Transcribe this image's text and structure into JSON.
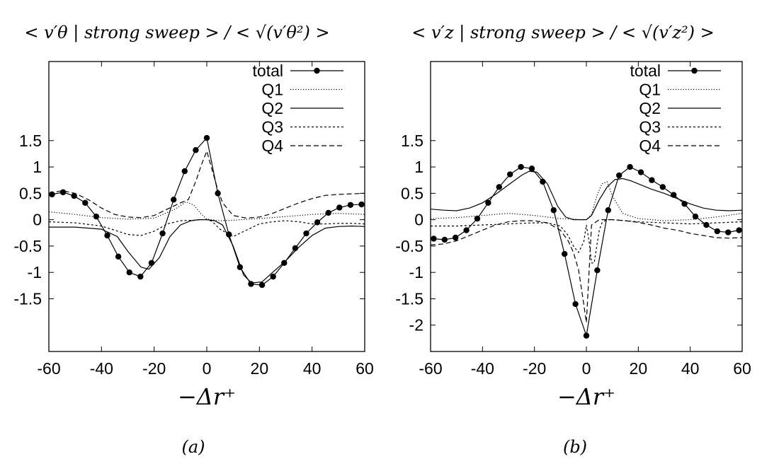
{
  "chart_data": [
    {
      "type": "line",
      "title": "< v′θ | strong sweep > / < √(v′θ²) >",
      "xlabel": "−Δr⁺",
      "ylabel": "",
      "xlim": [
        -60,
        60
      ],
      "ylim": [
        -2.5,
        3.0
      ],
      "xticks": [
        "-60",
        "-40",
        "-20",
        "0",
        "20",
        "40",
        "60"
      ],
      "yticks": [
        "1.5",
        "1",
        "0.5",
        "0",
        "-0.5",
        "-1",
        "-1.5"
      ],
      "legend": "top-right",
      "caption": "(a)",
      "series": [
        {
          "name": "total",
          "style": "solid-dots",
          "x": [
            -58.8,
            -54.6,
            -50.4,
            -46.2,
            -42.0,
            -37.8,
            -33.6,
            -29.4,
            -25.2,
            -21.0,
            -16.8,
            -12.6,
            -8.4,
            -4.2,
            0.0,
            4.2,
            8.4,
            12.6,
            16.8,
            21.0,
            25.2,
            29.4,
            33.6,
            37.8,
            42.0,
            46.2,
            50.4,
            54.6,
            58.8
          ],
          "y": [
            0.48,
            0.52,
            0.45,
            0.32,
            0.06,
            -0.3,
            -0.7,
            -1.0,
            -1.08,
            -0.82,
            -0.26,
            0.38,
            0.92,
            1.32,
            1.55,
            0.5,
            -0.28,
            -0.9,
            -1.22,
            -1.24,
            -1.08,
            -0.82,
            -0.54,
            -0.26,
            -0.05,
            0.13,
            0.23,
            0.28,
            0.29
          ]
        },
        {
          "name": "Q1",
          "style": "dotted",
          "x": [
            -60,
            -50,
            -40,
            -30,
            -20,
            -12,
            -8,
            -5,
            -2,
            0,
            5,
            10,
            20,
            30,
            40,
            50,
            60
          ],
          "y": [
            0.15,
            0.1,
            0.04,
            0.01,
            0.03,
            0.2,
            0.34,
            0.28,
            0.1,
            0.01,
            -0.02,
            -0.01,
            0.02,
            0.06,
            0.1,
            0.12,
            0.1
          ]
        },
        {
          "name": "Q2",
          "style": "solid",
          "x": [
            -60,
            -50,
            -40,
            -34,
            -30,
            -25,
            -22,
            -18,
            -14,
            -10,
            -6,
            -3,
            0,
            3,
            6,
            10,
            14,
            17,
            21,
            25,
            30,
            35,
            40,
            45,
            50,
            55,
            60
          ],
          "y": [
            -0.14,
            -0.14,
            -0.18,
            -0.32,
            -0.6,
            -0.9,
            -0.94,
            -0.72,
            -0.32,
            -0.1,
            -0.02,
            0.0,
            0.0,
            -0.02,
            -0.1,
            -0.5,
            -1.05,
            -1.2,
            -1.18,
            -1.0,
            -0.78,
            -0.52,
            -0.3,
            -0.16,
            -0.13,
            -0.12,
            -0.13
          ]
        },
        {
          "name": "Q3",
          "style": "dashed-fine",
          "x": [
            -60,
            -50,
            -40,
            -35,
            -30,
            -25,
            -20,
            -15,
            -10,
            -5,
            -2,
            0,
            2,
            5,
            10,
            15,
            20,
            25,
            30,
            35,
            40,
            45,
            50,
            55,
            60
          ],
          "y": [
            -0.04,
            -0.06,
            -0.12,
            -0.2,
            -0.28,
            -0.3,
            -0.22,
            -0.08,
            -0.02,
            -0.01,
            0.0,
            0.0,
            -0.03,
            -0.18,
            -0.32,
            -0.2,
            -0.08,
            -0.04,
            -0.02,
            -0.04,
            -0.08,
            -0.08,
            -0.07,
            -0.07,
            -0.08
          ]
        },
        {
          "name": "Q4",
          "style": "dashed",
          "x": [
            -60,
            -55,
            -50,
            -45,
            -40,
            -35,
            -30,
            -25,
            -20,
            -15,
            -10,
            -7,
            -4,
            -2,
            0,
            2,
            4,
            6,
            10,
            15,
            20,
            25,
            30,
            35,
            40,
            45,
            50,
            55,
            60
          ],
          "y": [
            0.5,
            0.55,
            0.5,
            0.38,
            0.22,
            0.1,
            0.05,
            0.04,
            0.08,
            0.2,
            0.32,
            0.38,
            0.75,
            1.05,
            1.3,
            0.95,
            0.6,
            0.32,
            0.08,
            0.03,
            0.05,
            0.12,
            0.22,
            0.32,
            0.4,
            0.46,
            0.48,
            0.49,
            0.5
          ]
        }
      ]
    },
    {
      "type": "line",
      "title": "< v′z | strong sweep > / < √(v′z²) >",
      "xlabel": "−Δr⁺",
      "ylabel": "",
      "xlim": [
        -60,
        60
      ],
      "ylim": [
        -2.5,
        3.0
      ],
      "xticks": [
        "-60",
        "-40",
        "-20",
        "0",
        "20",
        "40",
        "60"
      ],
      "yticks": [
        "1.5",
        "1",
        "0.5",
        "0",
        "-0.5",
        "-1",
        "-1.5",
        "-2"
      ],
      "legend": "top-right",
      "caption": "(b)",
      "series": [
        {
          "name": "total",
          "style": "solid-dots",
          "x": [
            -58.8,
            -54.6,
            -50.4,
            -46.2,
            -42.0,
            -37.8,
            -33.6,
            -29.4,
            -25.2,
            -21.0,
            -16.8,
            -12.6,
            -8.4,
            -4.2,
            0.0,
            4.2,
            8.4,
            12.6,
            16.8,
            21.0,
            25.2,
            29.4,
            33.6,
            37.8,
            42.0,
            46.2,
            50.4,
            54.6,
            58.8
          ],
          "y": [
            -0.36,
            -0.38,
            -0.34,
            -0.2,
            0.02,
            0.32,
            0.62,
            0.86,
            1.0,
            0.97,
            0.72,
            0.18,
            -0.65,
            -1.6,
            -2.2,
            -0.96,
            0.18,
            0.84,
            1.0,
            0.9,
            0.75,
            0.62,
            0.47,
            0.3,
            0.06,
            -0.1,
            -0.22,
            -0.24,
            -0.2
          ]
        },
        {
          "name": "Q1",
          "style": "dotted",
          "x": [
            -60,
            -50,
            -40,
            -30,
            -20,
            -10,
            -5,
            -2,
            0,
            2,
            4,
            6,
            8,
            10,
            14,
            20,
            30,
            40,
            50,
            60
          ],
          "y": [
            0.02,
            0.04,
            0.08,
            0.12,
            0.08,
            0.02,
            0.01,
            0.0,
            0.0,
            0.1,
            0.45,
            0.68,
            0.72,
            0.45,
            0.12,
            0.02,
            -0.02,
            0.0,
            0.05,
            0.12
          ]
        },
        {
          "name": "Q2",
          "style": "solid",
          "x": [
            -60,
            -55,
            -50,
            -45,
            -40,
            -35,
            -30,
            -25,
            -22,
            -19,
            -15,
            -11,
            -8,
            -5,
            -2,
            0,
            2,
            5,
            8,
            11,
            14,
            17,
            20,
            25,
            30,
            35,
            40,
            45,
            50,
            55,
            60
          ],
          "y": [
            0.2,
            0.18,
            0.17,
            0.22,
            0.32,
            0.48,
            0.66,
            0.84,
            0.92,
            0.9,
            0.68,
            0.25,
            0.05,
            0.0,
            0.0,
            0.0,
            0.08,
            0.38,
            0.62,
            0.76,
            0.78,
            0.74,
            0.68,
            0.58,
            0.5,
            0.4,
            0.3,
            0.22,
            0.18,
            0.17,
            0.18
          ]
        },
        {
          "name": "Q3",
          "style": "dashed-fine",
          "x": [
            -60,
            -50,
            -40,
            -30,
            -20,
            -15,
            -10,
            -7,
            -5,
            -3,
            -1,
            0,
            1,
            2,
            3,
            4,
            5,
            6,
            8,
            10,
            15,
            20,
            30,
            40,
            50,
            60
          ],
          "y": [
            -0.12,
            -0.12,
            -0.1,
            -0.08,
            -0.06,
            -0.06,
            -0.12,
            -0.3,
            -0.5,
            -0.62,
            -0.42,
            -0.1,
            -0.4,
            -0.82,
            -0.82,
            -0.5,
            -0.2,
            -0.06,
            0.0,
            0.0,
            -0.02,
            -0.04,
            -0.06,
            -0.08,
            -0.06,
            -0.04
          ]
        },
        {
          "name": "Q4",
          "style": "dashed",
          "x": [
            -60,
            -55,
            -50,
            -45,
            -40,
            -35,
            -30,
            -25,
            -20,
            -15,
            -10,
            -7,
            -5,
            -3,
            -1,
            0,
            2,
            5,
            10,
            15,
            20,
            25,
            30,
            35,
            40,
            45,
            50,
            55,
            60
          ],
          "y": [
            -0.48,
            -0.46,
            -0.4,
            -0.3,
            -0.2,
            -0.1,
            -0.04,
            -0.02,
            -0.02,
            -0.06,
            -0.2,
            -0.4,
            -0.62,
            -0.95,
            -1.6,
            -1.95,
            -0.1,
            0.0,
            0.0,
            -0.02,
            -0.05,
            -0.1,
            -0.16,
            -0.2,
            -0.26,
            -0.3,
            -0.34,
            -0.35,
            -0.34
          ]
        }
      ]
    }
  ]
}
